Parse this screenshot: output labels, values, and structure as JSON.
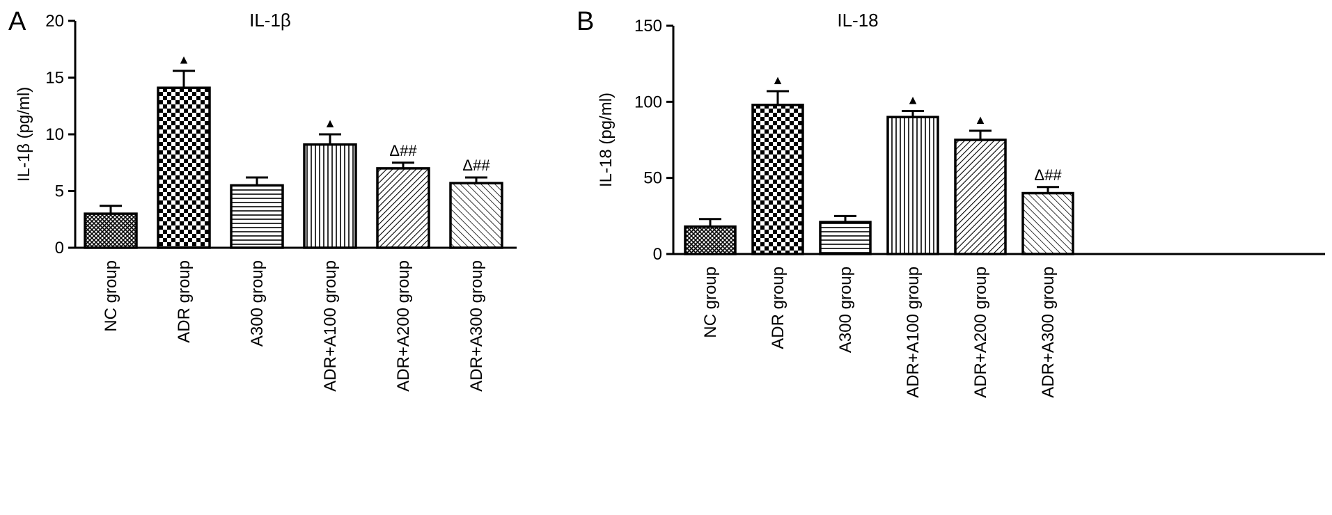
{
  "chart_data": [
    {
      "panel": "A",
      "type": "bar",
      "title": "IL-1β",
      "ylabel": "IL-1β (pg/ml)",
      "xlabel": "",
      "ylim": [
        0,
        20
      ],
      "yticks": [
        0,
        5,
        10,
        15,
        20
      ],
      "categories": [
        "NC group",
        "ADR group",
        "A300 group",
        "ADR+A100 group",
        "ADR+A200 group",
        "ADR+A300 group"
      ],
      "values": [
        3.0,
        14.1,
        5.5,
        9.1,
        7.0,
        5.7
      ],
      "errors": [
        0.7,
        1.5,
        0.7,
        0.9,
        0.5,
        0.5
      ],
      "patterns": [
        "cross",
        "checker",
        "hlines",
        "vlines",
        "diag-dense",
        "diag-sparse"
      ],
      "annotations": [
        "",
        "▲",
        "",
        "▲",
        "Δ##",
        "Δ##"
      ],
      "grid": false,
      "legend": "none"
    },
    {
      "panel": "B",
      "type": "bar",
      "title": "IL-18",
      "ylabel": "IL-18 (pg/ml)",
      "xlabel": "",
      "ylim": [
        0,
        150
      ],
      "yticks": [
        0,
        50,
        100,
        150
      ],
      "categories": [
        "NC group",
        "ADR group",
        "A300 group",
        "ADR+A100 group",
        "ADR+A200 group",
        "ADR+A300 group"
      ],
      "values": [
        18,
        98,
        21,
        90,
        75,
        40
      ],
      "errors": [
        5,
        9,
        4,
        4,
        6,
        4
      ],
      "patterns": [
        "cross",
        "checker",
        "hlines",
        "vlines",
        "diag-dense",
        "diag-sparse"
      ],
      "annotations": [
        "",
        "▲",
        "",
        "▲",
        "▲",
        "Δ##"
      ],
      "grid": false,
      "legend": "none"
    }
  ],
  "colors": {
    "bar_stroke": "#000000",
    "background": "#ffffff"
  }
}
